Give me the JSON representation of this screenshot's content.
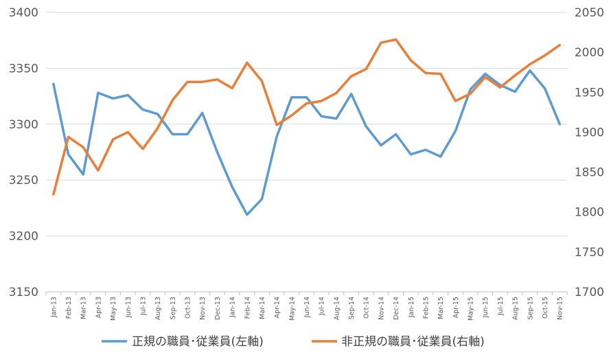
{
  "chart_data": {
    "type": "line",
    "categories": [
      "Jan-13",
      "Feb-13",
      "Mar-13",
      "Apr-13",
      "May-13",
      "Jun-13",
      "Jul-13",
      "Aug-13",
      "Sep-13",
      "Oct-13",
      "Nov-13",
      "Dec-13",
      "Jan-14",
      "Feb-14",
      "Mar-14",
      "Apr-14",
      "May-14",
      "Jun-14",
      "Jul-14",
      "Aug-14",
      "Sep-14",
      "Oct-14",
      "Nov-14",
      "Dec-14",
      "Jan-15",
      "Feb-15",
      "Mar-15",
      "Apr-15",
      "May-15",
      "Jun-15",
      "Jul-15",
      "Aug-15",
      "Sep-15",
      "Oct-15",
      "Nov-15"
    ],
    "series": [
      {
        "name": "正規の職員･従業員(左軸)",
        "axis": "left",
        "color": "#5B9BD5",
        "values": [
          3336,
          3273,
          3255,
          3328,
          3323,
          3326,
          3313,
          3309,
          3291,
          3291,
          3310,
          3275,
          3244,
          3219,
          3233,
          3289,
          3324,
          3324,
          3307,
          3305,
          3327,
          3298,
          3281,
          3291,
          3273,
          3277,
          3271,
          3294,
          3331,
          3345,
          3335,
          3329,
          3348,
          3332,
          3300
        ]
      },
      {
        "name": "非正規の職員･従業員(右軸)",
        "axis": "right",
        "color": "#ED7D31",
        "values": [
          1822,
          1894,
          1881,
          1852,
          1891,
          1900,
          1879,
          1905,
          1940,
          1963,
          1963,
          1966,
          1955,
          1987,
          1964,
          1909,
          1921,
          1936,
          1939,
          1949,
          1970,
          1979,
          2012,
          2016,
          1990,
          1974,
          1973,
          1939,
          1948,
          1969,
          1956,
          1971,
          1985,
          1996,
          2009
        ]
      }
    ],
    "y_left": {
      "min": 3150,
      "max": 3400,
      "ticks": [
        "3150",
        "3200",
        "3250",
        "3300",
        "3350",
        "3400"
      ]
    },
    "y_right": {
      "min": 1700,
      "max": 2050,
      "ticks": [
        "1700",
        "1750",
        "1800",
        "1850",
        "1900",
        "1950",
        "2000",
        "2050"
      ]
    },
    "grid": true,
    "legend_position": "bottom"
  }
}
